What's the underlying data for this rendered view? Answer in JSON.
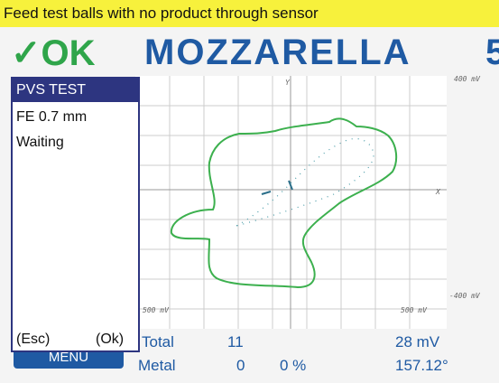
{
  "status_bar": {
    "message": "Feed test balls with no product through sensor"
  },
  "header": {
    "status": "✓OK",
    "product": "MOZZARELLA",
    "product_number": "5"
  },
  "plot": {
    "y_axis_label": "Y",
    "x_axis_label": "X",
    "y_top_label": "400 mV",
    "y_bottom_label": "-400 mV",
    "x_left_label": "500 mV",
    "x_right_label": "500 mV"
  },
  "panel": {
    "title": "PVS TEST",
    "lines": [
      "FE 0.7 mm",
      "Waiting"
    ],
    "left_key": "(Esc)",
    "right_key": "(Ok)"
  },
  "menu_button": "MENU",
  "stats": {
    "total_label": "Total",
    "total_count": "11",
    "total_signal": "28 mV",
    "metal_label": "Metal",
    "metal_count": "0",
    "metal_percent": "0 %",
    "metal_phase": "157.12°"
  }
}
